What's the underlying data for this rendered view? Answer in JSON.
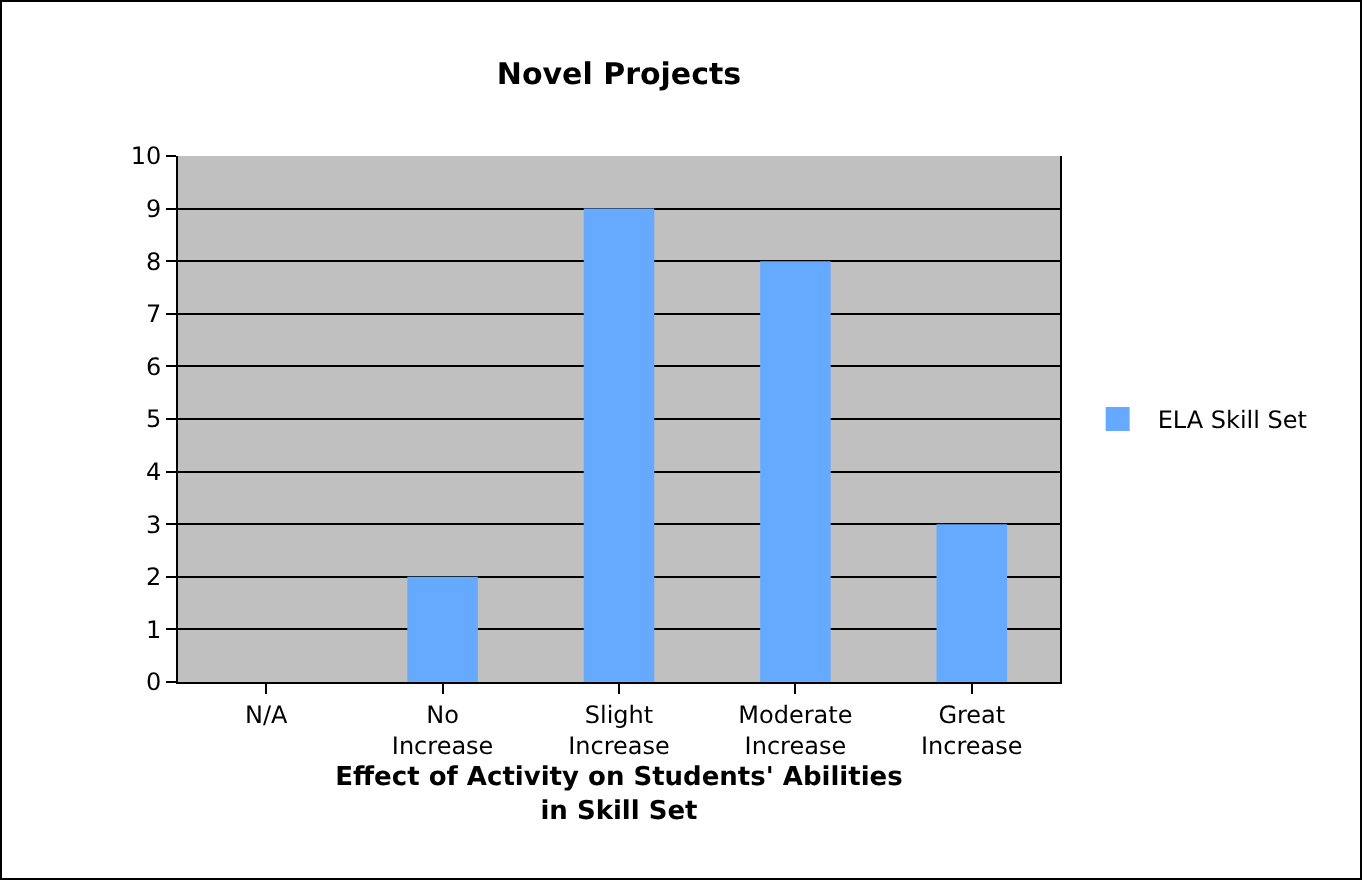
{
  "chart_data": {
    "type": "bar",
    "title": "Novel Projects",
    "xlabel": "Effect of Activity on Students' Abilities in Skill Set",
    "categories": [
      "N/A",
      "No Increase",
      "Slight Increase",
      "Moderate Increase",
      "Great Increase"
    ],
    "series": [
      {
        "name": "ELA Skill Set",
        "color": "#66aaff",
        "values": [
          0,
          2,
          9,
          8,
          3
        ]
      }
    ],
    "ylim": [
      0,
      10
    ],
    "yticks": [
      0,
      1,
      2,
      3,
      4,
      5,
      6,
      7,
      8,
      9,
      10
    ],
    "grid": "y",
    "legend": "right"
  }
}
